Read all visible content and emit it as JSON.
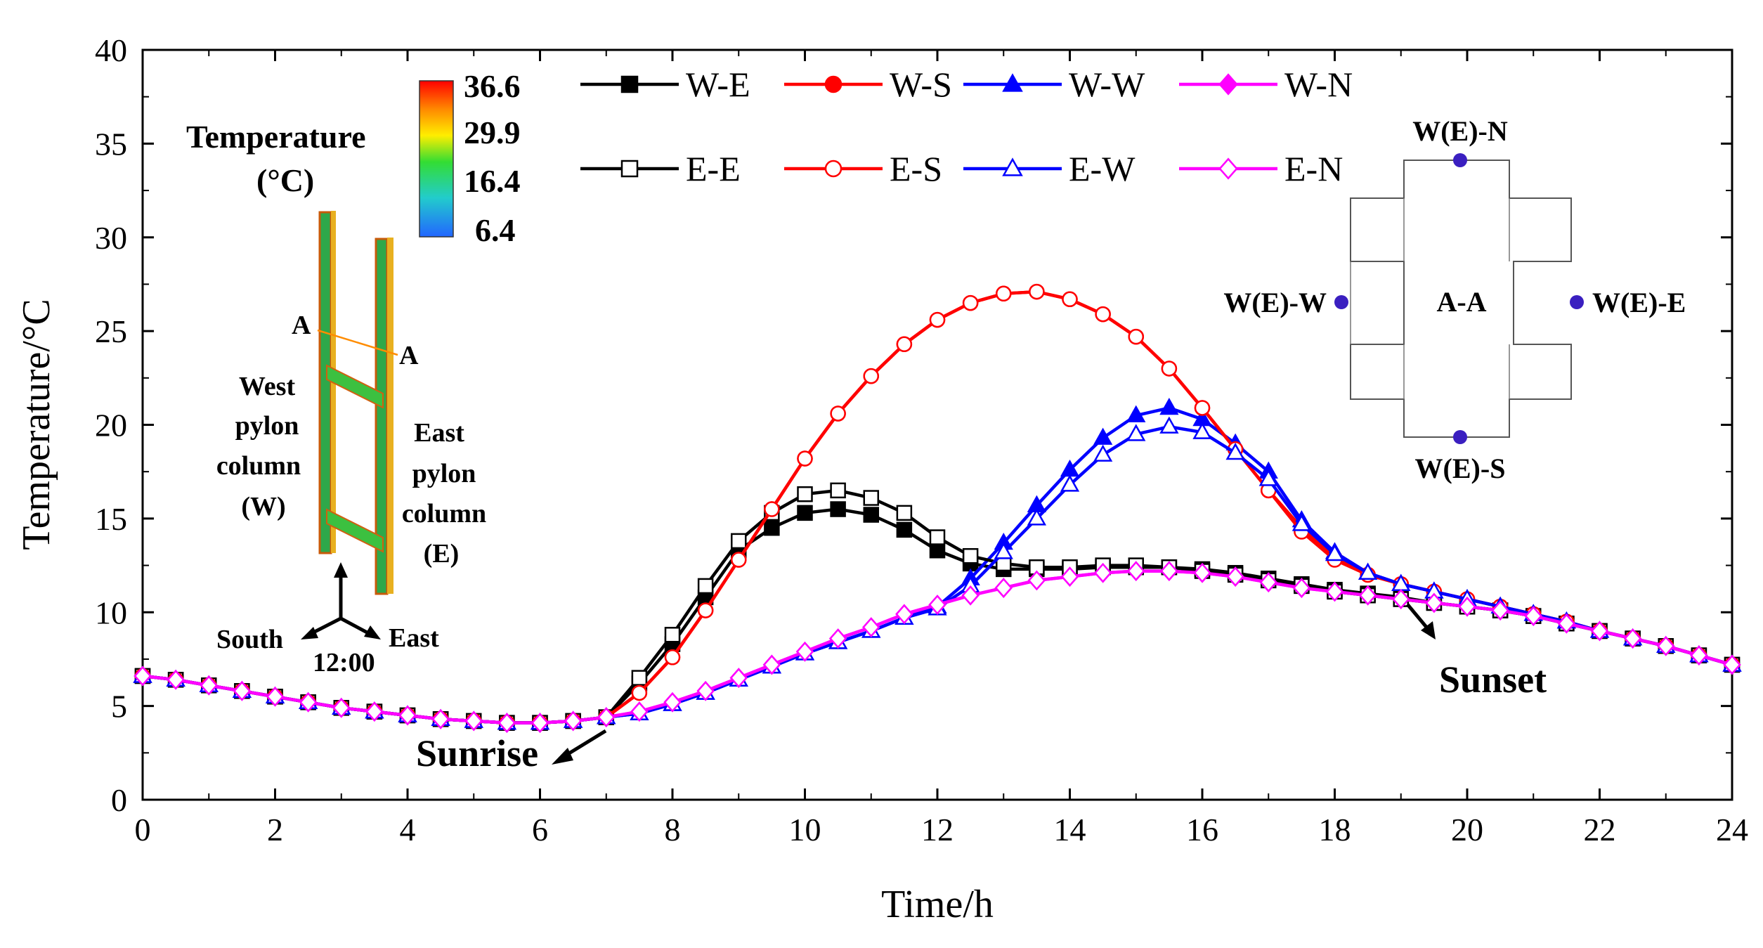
{
  "chart_data": {
    "type": "line",
    "xlabel": "Time/h",
    "ylabel": "Temperature/°C",
    "xlim": [
      0,
      24
    ],
    "ylim": [
      0,
      40
    ],
    "xticks": [
      0,
      2,
      4,
      6,
      8,
      10,
      12,
      14,
      16,
      18,
      20,
      22,
      24
    ],
    "yticks": [
      0,
      5,
      10,
      15,
      20,
      25,
      30,
      35,
      40
    ],
    "grid": false,
    "legend_position": "top-center",
    "x": [
      0,
      0.5,
      1,
      1.5,
      2,
      2.5,
      3,
      3.5,
      4,
      4.5,
      5,
      5.5,
      6,
      6.5,
      7,
      7.5,
      8,
      8.5,
      9,
      9.5,
      10,
      10.5,
      11,
      11.5,
      12,
      12.5,
      13,
      13.5,
      14,
      14.5,
      15,
      15.5,
      16,
      16.5,
      17,
      17.5,
      18,
      18.5,
      19,
      19.5,
      20,
      20.5,
      21,
      21.5,
      22,
      22.5,
      23,
      23.5,
      24
    ],
    "series": [
      {
        "name": "W-E",
        "color": "#000000",
        "marker": "square",
        "filled": true,
        "values": [
          6.6,
          6.4,
          6.1,
          5.8,
          5.5,
          5.2,
          4.9,
          4.7,
          4.5,
          4.3,
          4.2,
          4.1,
          4.1,
          4.2,
          4.4,
          6.2,
          8.3,
          10.8,
          13.3,
          14.5,
          15.3,
          15.5,
          15.2,
          14.4,
          13.3,
          12.6,
          12.3,
          12.3,
          12.3,
          12.4,
          12.4,
          12.4,
          12.3,
          12.1,
          11.8,
          11.5,
          11.2,
          11.0,
          10.8,
          10.5,
          10.3,
          10.1,
          9.8,
          9.4,
          9.0,
          8.6,
          8.2,
          7.7,
          7.2
        ]
      },
      {
        "name": "W-S",
        "color": "#ff0000",
        "marker": "circle",
        "filled": true,
        "values": [
          6.6,
          6.4,
          6.1,
          5.8,
          5.5,
          5.2,
          4.9,
          4.7,
          4.5,
          4.3,
          4.2,
          4.1,
          4.1,
          4.2,
          4.4,
          5.7,
          7.6,
          10.1,
          12.8,
          15.5,
          18.2,
          20.6,
          22.6,
          24.3,
          25.6,
          26.5,
          27.0,
          27.1,
          26.7,
          25.9,
          24.7,
          23.0,
          20.9,
          18.7,
          16.5,
          14.5,
          12.9,
          12.0,
          11.5,
          11.1,
          10.7,
          10.3,
          9.9,
          9.5,
          9.0,
          8.6,
          8.2,
          7.7,
          7.2
        ]
      },
      {
        "name": "W-W",
        "color": "#0000ff",
        "marker": "triangle",
        "filled": true,
        "values": [
          6.6,
          6.4,
          6.1,
          5.8,
          5.5,
          5.2,
          4.9,
          4.7,
          4.5,
          4.3,
          4.2,
          4.1,
          4.1,
          4.2,
          4.4,
          4.6,
          5.1,
          5.7,
          6.4,
          7.1,
          7.8,
          8.4,
          9.0,
          9.7,
          10.3,
          11.8,
          13.7,
          15.7,
          17.6,
          19.3,
          20.5,
          20.9,
          20.3,
          19.0,
          17.5,
          14.9,
          13.2,
          12.1,
          11.5,
          11.1,
          10.7,
          10.3,
          9.9,
          9.5,
          9.0,
          8.6,
          8.2,
          7.7,
          7.2
        ]
      },
      {
        "name": "W-N",
        "color": "#ff00ff",
        "marker": "diamond",
        "filled": true,
        "values": [
          6.6,
          6.4,
          6.1,
          5.8,
          5.5,
          5.2,
          4.9,
          4.7,
          4.5,
          4.3,
          4.2,
          4.1,
          4.1,
          4.2,
          4.4,
          4.7,
          5.2,
          5.8,
          6.5,
          7.2,
          7.9,
          8.6,
          9.2,
          9.9,
          10.4,
          10.9,
          11.3,
          11.7,
          11.9,
          12.1,
          12.2,
          12.2,
          12.1,
          11.9,
          11.6,
          11.3,
          11.1,
          10.9,
          10.7,
          10.5,
          10.3,
          10.1,
          9.8,
          9.4,
          9.0,
          8.6,
          8.2,
          7.7,
          7.2
        ]
      },
      {
        "name": "E-E",
        "color": "#000000",
        "marker": "square",
        "filled": false,
        "values": [
          6.6,
          6.4,
          6.1,
          5.8,
          5.5,
          5.2,
          4.9,
          4.7,
          4.5,
          4.3,
          4.2,
          4.1,
          4.1,
          4.2,
          4.4,
          6.5,
          8.8,
          11.4,
          13.8,
          15.3,
          16.3,
          16.5,
          16.1,
          15.3,
          14.0,
          13.0,
          12.6,
          12.4,
          12.4,
          12.5,
          12.5,
          12.4,
          12.2,
          12.0,
          11.7,
          11.4,
          11.1,
          10.9,
          10.7,
          10.5,
          10.3,
          10.1,
          9.8,
          9.4,
          9.0,
          8.6,
          8.2,
          7.7,
          7.2
        ]
      },
      {
        "name": "E-S",
        "color": "#ff0000",
        "marker": "circle",
        "filled": false,
        "values": [
          6.6,
          6.4,
          6.1,
          5.8,
          5.5,
          5.2,
          4.9,
          4.7,
          4.5,
          4.3,
          4.2,
          4.1,
          4.1,
          4.2,
          4.4,
          5.7,
          7.6,
          10.1,
          12.8,
          15.5,
          18.2,
          20.6,
          22.6,
          24.3,
          25.6,
          26.5,
          27.0,
          27.1,
          26.7,
          25.9,
          24.7,
          23.0,
          20.9,
          18.7,
          16.5,
          14.3,
          12.8,
          12.0,
          11.5,
          11.1,
          10.7,
          10.3,
          9.9,
          9.5,
          9.0,
          8.6,
          8.2,
          7.7,
          7.2
        ]
      },
      {
        "name": "E-W",
        "color": "#0000ff",
        "marker": "triangle",
        "filled": false,
        "values": [
          6.6,
          6.4,
          6.1,
          5.8,
          5.5,
          5.2,
          4.9,
          4.7,
          4.5,
          4.3,
          4.2,
          4.1,
          4.1,
          4.2,
          4.4,
          4.6,
          5.1,
          5.7,
          6.4,
          7.1,
          7.8,
          8.4,
          9.0,
          9.7,
          10.2,
          11.4,
          13.2,
          15.0,
          16.8,
          18.4,
          19.5,
          19.9,
          19.6,
          18.5,
          17.1,
          14.7,
          13.1,
          12.1,
          11.5,
          11.1,
          10.7,
          10.3,
          9.9,
          9.5,
          9.0,
          8.6,
          8.2,
          7.7,
          7.2
        ]
      },
      {
        "name": "E-N",
        "color": "#ff00ff",
        "marker": "diamond",
        "filled": false,
        "values": [
          6.6,
          6.4,
          6.1,
          5.8,
          5.5,
          5.2,
          4.9,
          4.7,
          4.5,
          4.3,
          4.2,
          4.1,
          4.1,
          4.2,
          4.4,
          4.7,
          5.2,
          5.8,
          6.5,
          7.2,
          7.9,
          8.6,
          9.2,
          9.9,
          10.4,
          10.9,
          11.3,
          11.7,
          11.9,
          12.1,
          12.2,
          12.2,
          12.1,
          11.9,
          11.6,
          11.3,
          11.1,
          10.9,
          10.7,
          10.5,
          10.3,
          10.1,
          9.8,
          9.4,
          9.0,
          8.6,
          8.2,
          7.7,
          7.2
        ]
      }
    ],
    "annotations": {
      "sunrise": "Sunrise",
      "sunset": "Sunset"
    },
    "inset_model": {
      "title": "Temperature",
      "unit": "(°C)",
      "scale_values": [
        "36.6",
        "29.9",
        "16.4",
        "6.4"
      ],
      "section_marker": "A",
      "west_label": [
        "West",
        "pylon",
        "column",
        "(W)"
      ],
      "east_label": [
        "East",
        "pylon",
        "column",
        "(E)"
      ],
      "compass": {
        "south": "South",
        "east": "East",
        "time": "12:00"
      }
    },
    "inset_section": {
      "title": "A-A",
      "north": "W(E)-N",
      "south": "W(E)-S",
      "west": "W(E)-W",
      "east": "W(E)-E"
    }
  }
}
